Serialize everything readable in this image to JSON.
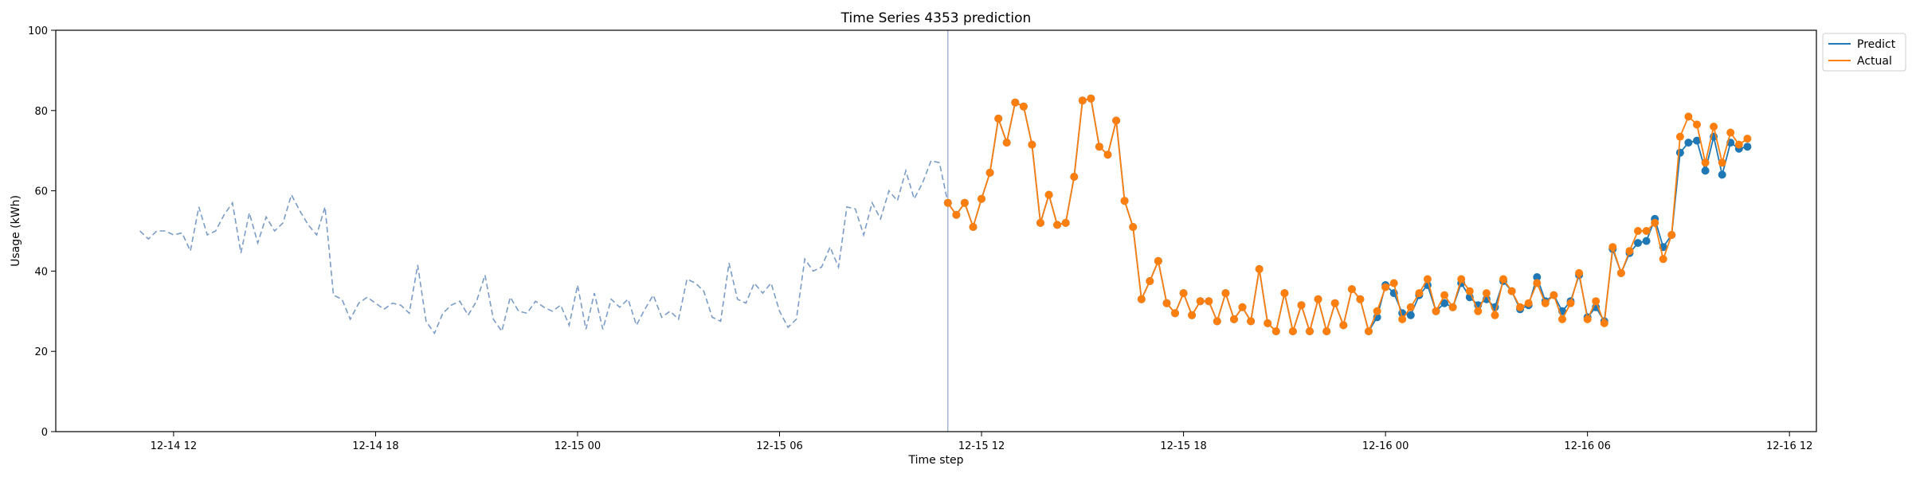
{
  "chart_data": {
    "type": "line",
    "title": "Time Series 4353 prediction",
    "xlabel": "Time step",
    "ylabel": "Usage (kWh)",
    "ylim": [
      0,
      100
    ],
    "yticks": [
      0,
      20,
      40,
      60,
      80,
      100
    ],
    "xlim": [
      "2024-12-14 08:30",
      "2024-12-16 12:48"
    ],
    "xticks": [
      {
        "label": "12-14 12",
        "time": "2024-12-14 12:00"
      },
      {
        "label": "12-14 18",
        "time": "2024-12-14 18:00"
      },
      {
        "label": "12-15 00",
        "time": "2024-12-15 00:00"
      },
      {
        "label": "12-15 06",
        "time": "2024-12-15 06:00"
      },
      {
        "label": "12-15 12",
        "time": "2024-12-15 12:00"
      },
      {
        "label": "12-15 18",
        "time": "2024-12-15 18:00"
      },
      {
        "label": "12-16 00",
        "time": "2024-12-16 00:00"
      },
      {
        "label": "12-16 06",
        "time": "2024-12-16 06:00"
      },
      {
        "label": "12-16 12",
        "time": "2024-12-16 12:00"
      }
    ],
    "grid": false,
    "legend_position": "outside-top-right",
    "forecast_start": "2024-12-15 11:00",
    "time_step_minutes": 15,
    "history": {
      "start": "2024-12-14 11:00",
      "color": "#7b9cc7",
      "style": "dashed",
      "values": [
        50,
        48,
        50,
        50,
        49,
        49.5,
        45,
        56,
        49,
        50,
        54,
        57,
        44.5,
        54.5,
        47,
        53.5,
        50,
        52,
        59,
        55,
        51.5,
        49,
        56,
        34,
        33,
        28,
        32,
        33.5,
        32,
        30.5,
        32,
        31.5,
        29.5,
        41.5,
        27.5,
        24.5,
        29.5,
        31.5,
        32.5,
        29,
        32.5,
        39,
        28,
        25,
        33.5,
        30,
        29.5,
        32.5,
        31,
        30,
        31.5,
        26.5,
        36.5,
        25.5,
        34.5,
        25.5,
        33,
        31,
        33,
        26.5,
        30.5,
        34,
        28.5,
        30,
        28,
        38,
        37,
        35,
        28.5,
        27.5,
        42,
        33,
        32,
        37,
        34.5,
        37,
        30,
        26,
        28,
        43,
        40,
        41,
        46,
        41,
        56,
        55.5,
        49,
        57,
        53,
        60,
        57.5,
        65,
        58,
        62,
        67.5,
        67,
        57
      ]
    },
    "forecast": {
      "start": "2024-12-15 11:00",
      "series": [
        {
          "name": "Predict",
          "color": "#1f77b4",
          "values": [
            57,
            54,
            57,
            51,
            58,
            64.5,
            78,
            72,
            82,
            81,
            71.5,
            52,
            59,
            51.5,
            52,
            63.5,
            82.5,
            83,
            71,
            69,
            77.5,
            57.5,
            51,
            33,
            37.5,
            42.5,
            32,
            29.5,
            34.5,
            29,
            32.5,
            32.5,
            27.5,
            34.5,
            28,
            31,
            27.5,
            40.5,
            27,
            25,
            34.5,
            25,
            31.5,
            25,
            33,
            25,
            32,
            26.5,
            35.5,
            33,
            25,
            28.5,
            36.5,
            34.5,
            29.5,
            29,
            34,
            36.5,
            30,
            32,
            31,
            37,
            33.5,
            31.5,
            33,
            31,
            37.5,
            35,
            30.5,
            31.5,
            38.5,
            32.5,
            34,
            30,
            32.5,
            39,
            28.5,
            31,
            27.5,
            45.5,
            39.5,
            44.5,
            47,
            47.5,
            53,
            46,
            49,
            69.5,
            72,
            72.5,
            65,
            73.5,
            64,
            72,
            70.5,
            71
          ]
        },
        {
          "name": "Actual",
          "color": "#ff7f0e",
          "values": [
            57,
            54,
            57,
            51,
            58,
            64.5,
            78,
            72,
            82,
            81,
            71.5,
            52,
            59,
            51.5,
            52,
            63.5,
            82.5,
            83,
            71,
            69,
            77.5,
            57.5,
            51,
            33,
            37.5,
            42.5,
            32,
            29.5,
            34.5,
            29,
            32.5,
            32.5,
            27.5,
            34.5,
            28,
            31,
            27.5,
            40.5,
            27,
            25,
            34.5,
            25,
            31.5,
            25,
            33,
            25,
            32,
            26.5,
            35.5,
            33,
            25,
            30,
            36,
            37,
            28,
            31,
            34.5,
            38,
            30,
            34,
            31,
            38,
            35,
            30,
            34.5,
            29,
            38,
            35,
            31,
            32,
            37,
            32,
            34,
            28,
            32,
            39.5,
            28,
            32.5,
            27,
            46,
            39.5,
            45,
            50,
            50,
            52,
            43,
            49,
            73.5,
            78.5,
            76.5,
            67,
            76,
            67,
            74.5,
            71.5,
            73
          ]
        }
      ]
    }
  }
}
